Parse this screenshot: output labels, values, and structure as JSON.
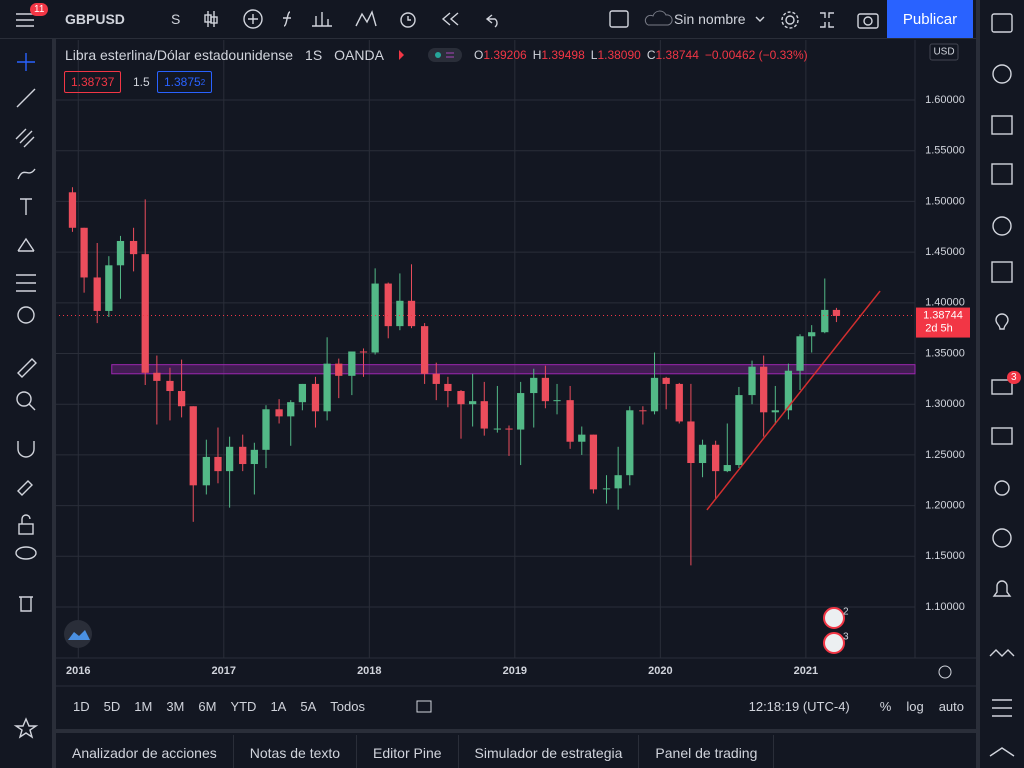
{
  "toolbar": {
    "badge": "11",
    "symbol": "GBPUSD",
    "interval": "S",
    "layout_name": "Sin nombre",
    "publish": "Publicar"
  },
  "legend": {
    "title": "Libra esterlina/Dólar estadounidense",
    "interval": "1S",
    "source": "OANDA",
    "ohlc": [
      {
        "label": "O",
        "value": "1.39206"
      },
      {
        "label": "H",
        "value": "1.39498"
      },
      {
        "label": "L",
        "value": "1.38090"
      },
      {
        "label": "C",
        "value": "1.38744"
      }
    ],
    "change": "−0.00462 (−0.33%)",
    "bid": "1.38737",
    "spread": "1.5",
    "ask": "1.3875",
    "ask_sup": "2"
  },
  "chart_data": {
    "type": "candlestick",
    "axis_unit": "USD",
    "grid": true,
    "up_color": "#53b987",
    "down_color": "#eb4d5c",
    "x": [
      2015.96,
      2016.04,
      2016.13,
      2016.21,
      2016.29,
      2016.38,
      2016.46,
      2016.54,
      2016.63,
      2016.71,
      2016.79,
      2016.88,
      2016.96,
      2017.04,
      2017.13,
      2017.21,
      2017.29,
      2017.38,
      2017.46,
      2017.54,
      2017.63,
      2017.71,
      2017.79,
      2017.88,
      2017.96,
      2018.04,
      2018.13,
      2018.21,
      2018.29,
      2018.38,
      2018.46,
      2018.54,
      2018.63,
      2018.71,
      2018.79,
      2018.88,
      2018.96,
      2019.04,
      2019.13,
      2019.21,
      2019.29,
      2019.38,
      2019.46,
      2019.54,
      2019.63,
      2019.71,
      2019.79,
      2019.88,
      2019.96,
      2020.04,
      2020.13,
      2020.21,
      2020.29,
      2020.38,
      2020.46,
      2020.54,
      2020.63,
      2020.71,
      2020.79,
      2020.88,
      2020.96,
      2021.04,
      2021.13,
      2021.21
    ],
    "open": [
      1.509,
      1.474,
      1.425,
      1.392,
      1.437,
      1.461,
      1.448,
      1.331,
      1.323,
      1.313,
      1.298,
      1.22,
      1.248,
      1.234,
      1.258,
      1.241,
      1.255,
      1.295,
      1.288,
      1.302,
      1.32,
      1.293,
      1.34,
      1.328,
      1.352,
      1.351,
      1.419,
      1.377,
      1.402,
      1.377,
      1.33,
      1.32,
      1.313,
      1.3,
      1.303,
      1.276,
      1.276,
      1.275,
      1.311,
      1.326,
      1.303,
      1.304,
      1.263,
      1.27,
      1.216,
      1.217,
      1.23,
      1.294,
      1.293,
      1.326,
      1.32,
      1.283,
      1.242,
      1.26,
      1.234,
      1.24,
      1.309,
      1.337,
      1.292,
      1.294,
      1.333,
      1.367,
      1.371,
      1.393
    ],
    "high": [
      1.514,
      1.474,
      1.459,
      1.446,
      1.466,
      1.474,
      1.502,
      1.348,
      1.336,
      1.344,
      1.298,
      1.265,
      1.277,
      1.268,
      1.27,
      1.262,
      1.299,
      1.305,
      1.304,
      1.32,
      1.327,
      1.366,
      1.345,
      1.351,
      1.355,
      1.434,
      1.42,
      1.429,
      1.438,
      1.38,
      1.341,
      1.327,
      1.314,
      1.33,
      1.322,
      1.318,
      1.279,
      1.322,
      1.335,
      1.338,
      1.32,
      1.318,
      1.278,
      1.27,
      1.23,
      1.258,
      1.298,
      1.298,
      1.351,
      1.327,
      1.321,
      1.32,
      1.265,
      1.264,
      1.281,
      1.317,
      1.343,
      1.348,
      1.318,
      1.34,
      1.369,
      1.378,
      1.424,
      1.395
    ],
    "low": [
      1.47,
      1.41,
      1.38,
      1.386,
      1.404,
      1.431,
      1.319,
      1.28,
      1.284,
      1.287,
      1.184,
      1.211,
      1.222,
      1.198,
      1.234,
      1.211,
      1.237,
      1.281,
      1.259,
      1.294,
      1.277,
      1.284,
      1.306,
      1.309,
      1.327,
      1.349,
      1.365,
      1.373,
      1.375,
      1.32,
      1.304,
      1.297,
      1.266,
      1.278,
      1.269,
      1.272,
      1.249,
      1.24,
      1.277,
      1.296,
      1.29,
      1.256,
      1.25,
      1.212,
      1.202,
      1.196,
      1.22,
      1.28,
      1.29,
      1.295,
      1.281,
      1.141,
      1.228,
      1.206,
      1.233,
      1.237,
      1.3,
      1.268,
      1.28,
      1.285,
      1.314,
      1.351,
      1.37,
      1.381
    ],
    "close": [
      1.474,
      1.425,
      1.392,
      1.437,
      1.461,
      1.448,
      1.331,
      1.323,
      1.313,
      1.298,
      1.22,
      1.248,
      1.234,
      1.258,
      1.241,
      1.255,
      1.295,
      1.288,
      1.302,
      1.32,
      1.293,
      1.34,
      1.328,
      1.352,
      1.351,
      1.419,
      1.377,
      1.402,
      1.377,
      1.33,
      1.32,
      1.313,
      1.3,
      1.303,
      1.276,
      1.276,
      1.275,
      1.311,
      1.326,
      1.303,
      1.304,
      1.263,
      1.27,
      1.216,
      1.217,
      1.23,
      1.294,
      1.293,
      1.326,
      1.32,
      1.283,
      1.242,
      1.26,
      1.234,
      1.24,
      1.309,
      1.337,
      1.292,
      1.294,
      1.333,
      1.367,
      1.371,
      1.393,
      1.387
    ],
    "xlim": [
      2015.84,
      2021.75
    ],
    "xticks": [
      2016,
      2017,
      2018,
      2019,
      2020,
      2021
    ],
    "ylim": [
      1.0497,
      1.6592
    ],
    "yticks": [
      {
        "value": 1.1,
        "label": "1.10000"
      },
      {
        "value": 1.15,
        "label": "1.15000"
      },
      {
        "value": 1.2,
        "label": "1.20000"
      },
      {
        "value": 1.25,
        "label": "1.25000"
      },
      {
        "value": 1.3,
        "label": "1.30000"
      },
      {
        "value": 1.35,
        "label": "1.35000"
      },
      {
        "value": 1.4,
        "label": "1.40000"
      },
      {
        "value": 1.45,
        "label": "1.45000"
      },
      {
        "value": 1.5,
        "label": "1.50000"
      },
      {
        "value": 1.55,
        "label": "1.55000"
      },
      {
        "value": 1.6,
        "label": "1.60000"
      }
    ],
    "last_price": {
      "value": 1.38744,
      "label": "1.38744",
      "countdown": "2d 5h",
      "color": "#f23645"
    },
    "zone": {
      "from": 1.33,
      "to": 1.339,
      "start": 2016.23,
      "color": "#9c27b0"
    },
    "trendline": {
      "x": [
        2020.32,
        2021.51
      ],
      "y": [
        1.1957,
        1.4116
      ],
      "color": "#d32f2f"
    },
    "events": [
      "2",
      "3"
    ]
  },
  "bottom_bar": {
    "ranges": [
      "1D",
      "5D",
      "1M",
      "3M",
      "6M",
      "YTD",
      "1A",
      "5A",
      "Todos"
    ],
    "clock": "12:18:19 (UTC-4)",
    "percent": "%",
    "log": "log",
    "auto": "auto"
  },
  "tabs": [
    "Analizador de acciones",
    "Notas de texto",
    "Editor Pine",
    "Simulador de estrategia",
    "Panel de trading"
  ],
  "sidebar_badge": "3"
}
